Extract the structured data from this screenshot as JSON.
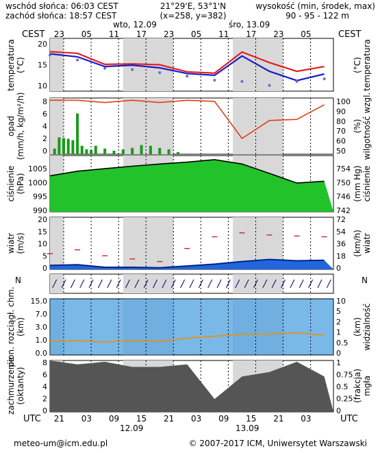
{
  "header": {
    "sunrise": "wschód słońca: 06:03 CEST",
    "sunset": "zachód słońca: 18:57 CEST",
    "coords": "21°29'E, 53°1'N",
    "grid": "(x=258, y=382)",
    "elev_title": "wysokość (min, środek, max)",
    "elev_values": "90 - 95 - 122 m"
  },
  "top_axis": {
    "tz_label": "CEST",
    "hours": [
      "23",
      "05",
      "11",
      "17",
      "23",
      "05",
      "11",
      "17",
      "23",
      "05"
    ],
    "days": [
      "wto, 12.09",
      "śro, 13.09"
    ]
  },
  "bottom_axis": {
    "tz_label": "UTC",
    "hours": [
      "21",
      "03",
      "09",
      "15",
      "21",
      "03",
      "09",
      "15",
      "21",
      "03"
    ],
    "days": [
      "12.09",
      "13.09"
    ]
  },
  "panels": {
    "temperature": {
      "left_label": "temperatura\n(°C)",
      "right_label": "(°C)\ntemperatura",
      "ticks": [
        "20",
        "15",
        "10"
      ]
    },
    "precip": {
      "left_label": "opad\n(mm/h, kg/m²/h)",
      "right_label": "(%)\nwilgotność wzgl.",
      "left_ticks": [
        "8",
        "6",
        "4",
        "2",
        "0"
      ],
      "right_ticks": [
        "100",
        "90",
        "80",
        "70",
        "60",
        "50"
      ]
    },
    "pressure": {
      "left_label": "ciśnienie\n(hPa)",
      "right_label": "(mm Hg)\nciśnienie",
      "left_ticks": [
        "1005",
        "1000",
        "995",
        "990"
      ],
      "right_ticks": [
        "754",
        "750",
        "746",
        "742"
      ]
    },
    "wind": {
      "left_label": "wiatr\n(m/s)",
      "right_label": "(km/h)\nwiatr",
      "left_ticks": [
        "20",
        "15",
        "10",
        "5",
        "0"
      ],
      "right_ticks": [
        "72",
        "54",
        "36",
        "18",
        "0"
      ]
    },
    "winddir": {
      "left_label": "N",
      "right_label": "N"
    },
    "visibility": {
      "left_label": "pion. rozciągł. chm.\n(km)",
      "right_label": "(km)\nwidzialność",
      "left_ticks": [
        "15.0",
        "7.0",
        "3.0",
        "1.0",
        "0.0"
      ],
      "right_ticks": [
        "10",
        "5",
        "2",
        "1",
        "0.5",
        "0"
      ]
    },
    "clouds": {
      "left_label": "zachmurzenie\n(oktanty)",
      "right_label": "(frakcja)\nmgła",
      "left_ticks": [
        "8",
        "6",
        "4",
        "2",
        "0"
      ],
      "right_ticks": [
        "1",
        "0.75",
        "0.5",
        "0.25",
        "0"
      ]
    }
  },
  "footer": {
    "email": "meteo-um@icm.edu.pl",
    "copyright": "© 2007-2017 ICM, Uniwersytet Warszawski"
  },
  "colors": {
    "night_shade": "#d8d8d8",
    "temp_line": "#e02020",
    "dew_line": "#1a1acc",
    "humidity_line": "#e04010",
    "pressure_fill": "#22c22a",
    "wind_fill": "#2266dd",
    "sky": "#7ab8e8",
    "cloud_dark": "#555555"
  },
  "chart_data": [
    {
      "type": "line",
      "title": "temperatura",
      "ylabel": "temperatura (°C)",
      "ylim": [
        9,
        21
      ],
      "x_hours_utc": [
        0,
        6,
        12,
        18,
        24,
        30,
        36,
        42,
        48,
        54,
        60
      ],
      "series": [
        {
          "values": [
            18.0,
            17.6,
            15.1,
            15.2,
            15.0,
            13.4,
            13.1,
            17.9,
            15.5,
            13.5,
            14.6
          ]
        },
        {
          "values": [
            17.5,
            16.8,
            14.6,
            14.9,
            14.3,
            13.0,
            12.6,
            17.0,
            13.5,
            11.4,
            12.9
          ]
        },
        {
          "values": [
            17.2,
            16.1,
            14.2,
            13.9,
            13.2,
            12.4,
            11.5,
            11.2,
            10.3,
            11.2,
            11.8
          ]
        }
      ]
    },
    {
      "type": "bar",
      "title": "opad",
      "ylabel": "(mm/h, kg/m²/h)",
      "ylim": [
        0,
        8
      ],
      "x_hours_utc": [
        1,
        2,
        3,
        4,
        5,
        6,
        7,
        8,
        9,
        10,
        12,
        14,
        16,
        18,
        20,
        22,
        24,
        26,
        28
      ],
      "values": [
        0.8,
        2.4,
        2.3,
        2.2,
        2.0,
        5.8,
        1.2,
        0.7,
        0.6,
        1.2,
        0.8,
        0.5,
        0.7,
        0.9,
        1.3,
        1.2,
        0.9,
        0.7,
        0.3
      ]
    },
    {
      "type": "line",
      "title": "wilgotność wzgl.",
      "ylabel": "(%)",
      "ylim": [
        50,
        100
      ],
      "x_hours_utc": [
        0,
        6,
        12,
        18,
        24,
        30,
        36,
        42,
        48,
        54,
        60
      ],
      "values": [
        98,
        98,
        96,
        98,
        96,
        98,
        97,
        64,
        80,
        81,
        94
      ]
    },
    {
      "type": "area",
      "title": "ciśnienie",
      "ylabel": "(hPa)",
      "ylim": [
        990,
        1008
      ],
      "x_hours_utc": [
        0,
        6,
        12,
        18,
        24,
        30,
        36,
        42,
        48,
        54,
        60
      ],
      "values": [
        1001.5,
        1003.0,
        1003.8,
        1004.6,
        1005.3,
        1005.9,
        1006.7,
        1005.3,
        1002.3,
        999.2,
        999.8
      ]
    },
    {
      "type": "area",
      "title": "wiatr",
      "ylabel": "(m/s)",
      "ylim": [
        0,
        20
      ],
      "x_hours_utc": [
        0,
        6,
        12,
        18,
        24,
        30,
        36,
        42,
        48,
        54,
        60
      ],
      "series": [
        {
          "values": [
            1.5,
            1.8,
            0.8,
            0.8,
            0.6,
            1.3,
            2.0,
            3.0,
            3.8,
            3.3,
            3.5
          ]
        },
        {
          "values": [
            6.0,
            7.5,
            5.2,
            4.0,
            3.0,
            8.0,
            12.5,
            14.0,
            13.2,
            12.8,
            12.5
          ]
        }
      ]
    },
    {
      "type": "line",
      "title": "widzialność",
      "ylabel": "(km)",
      "ylim": [
        0,
        15
      ],
      "x_hours_utc": [
        0,
        6,
        12,
        18,
        24,
        30,
        36,
        42,
        48,
        54,
        60
      ],
      "values": [
        3.6,
        3.8,
        3.4,
        3.8,
        3.6,
        4.5,
        5.0,
        5.5,
        5.6,
        5.9,
        5.3
      ]
    },
    {
      "type": "area",
      "title": "zachmurzenie",
      "ylabel": "(oktanty)",
      "ylim": [
        0,
        8
      ],
      "x_hours_utc": [
        0,
        6,
        12,
        18,
        24,
        30,
        36,
        42,
        48,
        54,
        60
      ],
      "values": [
        8.0,
        7.4,
        7.8,
        7.0,
        7.0,
        7.4,
        2.0,
        5.5,
        6.2,
        7.8,
        5.5
      ]
    }
  ]
}
